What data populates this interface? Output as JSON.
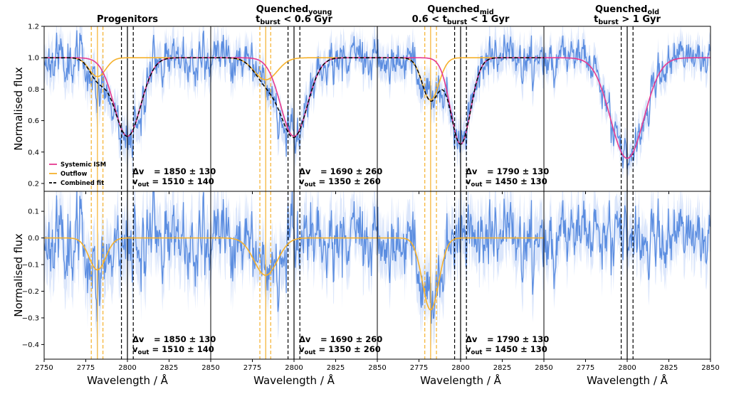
{
  "colors": {
    "data": "#5b8de0",
    "band": "#dbe6fb",
    "ism": "#e6398f",
    "outflow": "#f5b12c",
    "combined": "#000000",
    "line_marker": "#000000",
    "outflow_marker": "#f5b12c"
  },
  "chart_data": {
    "type": "line",
    "layout": "2x4 grid of spectral panels sharing x axis",
    "xlabel": "Wavelength / Å",
    "xlim": [
      2750,
      2850
    ],
    "xticks": [
      2750,
      2775,
      2800,
      2825,
      2850
    ],
    "xtick_labels": {
      "first": [
        "2750",
        "2775",
        "2800",
        "2825",
        "2850"
      ],
      "others": [
        "",
        "2775",
        "2800",
        "2825",
        "2850"
      ]
    },
    "rows": [
      {
        "ylabel": "Normalised flux",
        "ylim": [
          0.15,
          1.2
        ],
        "yticks": [
          0.2,
          0.4,
          0.6,
          0.8,
          1.0,
          1.2
        ],
        "ytick_labels": [
          "0.2",
          "0.4",
          "0.6",
          "0.8",
          "1.0",
          "1.2"
        ]
      },
      {
        "ylabel": "Normalised flux",
        "ylim": [
          -0.455,
          0.175
        ],
        "yticks": [
          -0.4,
          -0.3,
          -0.2,
          -0.1,
          0.0,
          0.1
        ],
        "ytick_labels": [
          "−0.4",
          "−0.3",
          "−0.2",
          "−0.1",
          "0.0",
          "0.1"
        ]
      }
    ],
    "legend": {
      "placement": "lower-left of first top panel",
      "entries": [
        {
          "label": "Systemic ISM",
          "color": "#e6398f",
          "style": "solid"
        },
        {
          "label": "Outflow",
          "color": "#f5b12c",
          "style": "solid"
        },
        {
          "label": "Combined fit",
          "color": "#000000",
          "style": "dashed"
        }
      ]
    },
    "mgii_lines": [
      2796.4,
      2803.5
    ],
    "systemic_centre": 2800.0,
    "panels": [
      {
        "title_parts": [
          {
            "t": "Progenitors"
          }
        ],
        "subtitle_parts": [],
        "annotation": {
          "dv_label": "Δv",
          "dv_value": "= 1850 ± 130",
          "vout_label": "v",
          "vout_sub": "out",
          "vout_value": "= 1510 ± 140"
        },
        "ism": {
          "depth": 0.5,
          "center": 2800.0,
          "sigma": 8.0
        },
        "outflow": {
          "depth": 0.12,
          "center": 2782.0,
          "sigma": 5.0
        },
        "outflow_lines": [
          2778.3,
          2782.0,
          2785.3
        ],
        "noise": 0.09,
        "seed": 11
      },
      {
        "title_parts": [
          {
            "t": "Quenched"
          },
          {
            "t": "young",
            "sub": true
          }
        ],
        "subtitle_parts": [
          {
            "t": "t"
          },
          {
            "t": "burst",
            "sub": true
          },
          {
            "t": " < 0.6 Gyr"
          }
        ],
        "annotation": {
          "dv_label": "Δv",
          "dv_value": "= 1690 ± 260",
          "vout_label": "v",
          "vout_sub": "out",
          "vout_value": "= 1350 ± 260"
        },
        "ism": {
          "depth": 0.5,
          "center": 2800.0,
          "sigma": 8.0
        },
        "outflow": {
          "depth": 0.14,
          "center": 2783.0,
          "sigma": 7.0
        },
        "outflow_lines": [
          2779.5,
          2783.0,
          2786.0
        ],
        "noise": 0.08,
        "seed": 23
      },
      {
        "title_parts": [
          {
            "t": "Quenched"
          },
          {
            "t": "mid",
            "sub": true
          }
        ],
        "subtitle_parts": [
          {
            "t": "0.6 < t"
          },
          {
            "t": "burst",
            "sub": true
          },
          {
            "t": " < 1 Gyr"
          }
        ],
        "annotation": {
          "dv_label": "Δv",
          "dv_value": "= 1790 ± 130",
          "vout_label": "v",
          "vout_sub": "out",
          "vout_value": "= 1450 ± 130"
        },
        "ism": {
          "depth": 0.55,
          "center": 2800.0,
          "sigma": 6.0
        },
        "outflow": {
          "depth": 0.27,
          "center": 2782.0,
          "sigma": 5.0
        },
        "outflow_lines": [
          2778.5,
          2782.0,
          2785.5
        ],
        "noise": 0.08,
        "seed": 37
      },
      {
        "title_parts": [
          {
            "t": "Quenched"
          },
          {
            "t": "old",
            "sub": true
          }
        ],
        "subtitle_parts": [
          {
            "t": "t"
          },
          {
            "t": "burst",
            "sub": true
          },
          {
            "t": " > 1 Gyr"
          }
        ],
        "annotation": null,
        "ism": {
          "depth": 0.64,
          "center": 2800.0,
          "sigma": 10.0
        },
        "outflow": null,
        "outflow_lines": [],
        "noise": 0.07,
        "seed": 51
      }
    ]
  }
}
